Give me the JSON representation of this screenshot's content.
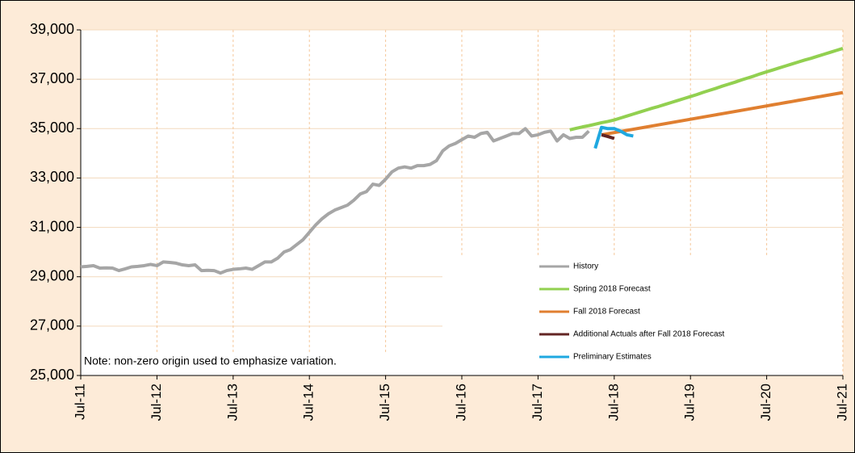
{
  "chart_data": {
    "type": "line",
    "categories": [
      "Jul-11",
      null,
      null,
      null,
      null,
      null,
      null,
      null,
      null,
      null,
      null,
      null,
      "Jul-12",
      null,
      null,
      null,
      null,
      null,
      null,
      null,
      null,
      null,
      null,
      null,
      "Jul-13",
      null,
      null,
      null,
      null,
      null,
      null,
      null,
      null,
      null,
      null,
      null,
      "Jul-14",
      null,
      null,
      null,
      null,
      null,
      null,
      null,
      null,
      null,
      null,
      null,
      "Jul-15",
      null,
      null,
      null,
      null,
      null,
      null,
      null,
      null,
      null,
      null,
      null,
      "Jul-16",
      null,
      null,
      null,
      null,
      null,
      null,
      null,
      null,
      null,
      null,
      null,
      "Jul-17",
      null,
      null,
      null,
      null,
      null,
      null,
      null,
      null,
      null,
      null,
      null,
      "Jul-18",
      null,
      null,
      null,
      null,
      null,
      null,
      null,
      null,
      null,
      null,
      null,
      "Jul-19",
      null,
      null,
      null,
      null,
      null,
      null,
      null,
      null,
      null,
      null,
      null,
      "Jul-20",
      null,
      null,
      null,
      null,
      null,
      null,
      null,
      null,
      null,
      null,
      null,
      "Jul-21"
    ],
    "series": [
      {
        "name": "History",
        "color": "#a6a6a6",
        "values": [
          29400,
          29420,
          29450,
          29350,
          29360,
          29350,
          29250,
          29320,
          29400,
          29420,
          29450,
          29500,
          29450,
          29600,
          29580,
          29550,
          29480,
          29450,
          29480,
          29250,
          29260,
          29250,
          29150,
          29250,
          29300,
          29320,
          29350,
          29300,
          29450,
          29600,
          29600,
          29750,
          30000,
          30100,
          30300,
          30500,
          30800,
          31100,
          31350,
          31550,
          31700,
          31800,
          31900,
          32100,
          32350,
          32450,
          32750,
          32700,
          32950,
          33250,
          33400,
          33450,
          33400,
          33500,
          33500,
          33550,
          33700,
          34100,
          34300,
          34400,
          34550,
          34700,
          34650,
          34800,
          34850,
          34500,
          34600,
          34700,
          34800,
          34800,
          35000,
          34700,
          34750,
          34850,
          34900,
          34500,
          34750,
          34600,
          34650,
          34650,
          34900,
          null,
          null,
          null,
          null,
          null,
          null,
          null,
          null,
          null,
          null,
          null,
          null,
          null,
          null,
          null,
          null,
          null,
          null,
          null,
          null,
          null,
          null,
          null,
          null,
          null,
          null,
          null,
          null,
          null,
          null,
          null,
          null,
          null,
          null,
          null,
          null,
          null,
          null,
          null,
          null
        ]
      },
      {
        "name": "Spring 2018 Forecast",
        "color": "#92d050",
        "values": [
          null,
          null,
          null,
          null,
          null,
          null,
          null,
          null,
          null,
          null,
          null,
          null,
          null,
          null,
          null,
          null,
          null,
          null,
          null,
          null,
          null,
          null,
          null,
          null,
          null,
          null,
          null,
          null,
          null,
          null,
          null,
          null,
          null,
          null,
          null,
          null,
          null,
          null,
          null,
          null,
          null,
          null,
          null,
          null,
          null,
          null,
          null,
          null,
          null,
          null,
          null,
          null,
          null,
          null,
          null,
          null,
          null,
          null,
          null,
          null,
          null,
          null,
          null,
          null,
          null,
          null,
          null,
          null,
          null,
          null,
          null,
          null,
          null,
          null,
          null,
          null,
          null,
          34950,
          35010,
          35070,
          35120,
          35180,
          35240,
          35290,
          35350,
          35430,
          35510,
          35590,
          35670,
          35750,
          35830,
          35900,
          35980,
          36060,
          36140,
          36220,
          36300,
          36380,
          36470,
          36550,
          36630,
          36720,
          36800,
          36880,
          36970,
          37050,
          37130,
          37220,
          37300,
          37380,
          37460,
          37540,
          37620,
          37700,
          37780,
          37850,
          37930,
          38010,
          38090,
          38170,
          38250
        ]
      },
      {
        "name": "Fall 2018 Forecast",
        "color": "#e07f30",
        "values": [
          null,
          null,
          null,
          null,
          null,
          null,
          null,
          null,
          null,
          null,
          null,
          null,
          null,
          null,
          null,
          null,
          null,
          null,
          null,
          null,
          null,
          null,
          null,
          null,
          null,
          null,
          null,
          null,
          null,
          null,
          null,
          null,
          null,
          null,
          null,
          null,
          null,
          null,
          null,
          null,
          null,
          null,
          null,
          null,
          null,
          null,
          null,
          null,
          null,
          null,
          null,
          null,
          null,
          null,
          null,
          null,
          null,
          null,
          null,
          null,
          null,
          null,
          null,
          null,
          null,
          null,
          null,
          null,
          null,
          null,
          null,
          null,
          null,
          null,
          null,
          null,
          null,
          null,
          null,
          null,
          null,
          null,
          34750,
          34795,
          34840,
          34885,
          34930,
          34975,
          35020,
          35065,
          35110,
          35155,
          35200,
          35245,
          35290,
          35335,
          35380,
          35425,
          35470,
          35515,
          35560,
          35605,
          35650,
          35695,
          35740,
          35785,
          35830,
          35875,
          35920,
          35965,
          36010,
          36055,
          36100,
          36145,
          36190,
          36235,
          36280,
          36325,
          36370,
          36415,
          36460
        ]
      },
      {
        "name": "Additional Actuals after Fall 2018 Forecast",
        "color": "#632523",
        "values": [
          null,
          null,
          null,
          null,
          null,
          null,
          null,
          null,
          null,
          null,
          null,
          null,
          null,
          null,
          null,
          null,
          null,
          null,
          null,
          null,
          null,
          null,
          null,
          null,
          null,
          null,
          null,
          null,
          null,
          null,
          null,
          null,
          null,
          null,
          null,
          null,
          null,
          null,
          null,
          null,
          null,
          null,
          null,
          null,
          null,
          null,
          null,
          null,
          null,
          null,
          null,
          null,
          null,
          null,
          null,
          null,
          null,
          null,
          null,
          null,
          null,
          null,
          null,
          null,
          null,
          null,
          null,
          null,
          null,
          null,
          null,
          null,
          null,
          null,
          null,
          null,
          null,
          null,
          null,
          null,
          null,
          null,
          34750,
          34680,
          34600,
          null,
          null,
          null,
          null,
          null,
          null,
          null,
          null,
          null,
          null,
          null,
          null,
          null,
          null,
          null,
          null,
          null,
          null,
          null,
          null,
          null,
          null,
          null,
          null,
          null,
          null,
          null,
          null,
          null,
          null,
          null,
          null,
          null,
          null,
          null,
          null
        ]
      },
      {
        "name": "Preliminary Estimates",
        "color": "#1fa8e0",
        "values": [
          null,
          null,
          null,
          null,
          null,
          null,
          null,
          null,
          null,
          null,
          null,
          null,
          null,
          null,
          null,
          null,
          null,
          null,
          null,
          null,
          null,
          null,
          null,
          null,
          null,
          null,
          null,
          null,
          null,
          null,
          null,
          null,
          null,
          null,
          null,
          null,
          null,
          null,
          null,
          null,
          null,
          null,
          null,
          null,
          null,
          null,
          null,
          null,
          null,
          null,
          null,
          null,
          null,
          null,
          null,
          null,
          null,
          null,
          null,
          null,
          null,
          null,
          null,
          null,
          null,
          null,
          null,
          null,
          null,
          null,
          null,
          null,
          null,
          null,
          null,
          null,
          null,
          null,
          null,
          null,
          null,
          34200,
          35050,
          35000,
          35000,
          34900,
          34750,
          34700,
          null,
          null,
          null,
          null,
          null,
          null,
          null,
          null,
          null,
          null,
          null,
          null,
          null,
          null,
          null,
          null,
          null,
          null,
          null,
          null,
          null,
          null,
          null,
          null,
          null,
          null,
          null,
          null,
          null,
          null,
          null,
          null,
          null
        ]
      }
    ],
    "ylim": [
      25000,
      39000
    ],
    "yticks": [
      {
        "value": 25000,
        "label": "25,000"
      },
      {
        "value": 27000,
        "label": "27,000"
      },
      {
        "value": 29000,
        "label": "29,000"
      },
      {
        "value": 31000,
        "label": "31,000"
      },
      {
        "value": 33000,
        "label": "33,000"
      },
      {
        "value": 35000,
        "label": "35,000"
      },
      {
        "value": 37000,
        "label": "37,000"
      },
      {
        "value": 39000,
        "label": "39,000"
      }
    ],
    "grid": true,
    "legend": "lower right",
    "annotations": [
      "Note: non-zero origin used to emphasize variation."
    ]
  }
}
